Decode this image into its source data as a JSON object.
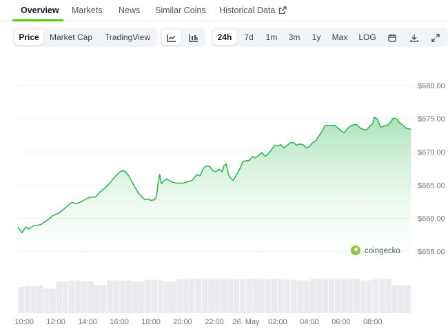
{
  "nav": {
    "tabs": [
      "Overview",
      "Markets",
      "News",
      "Similar Coins",
      "Historical Data"
    ],
    "active": "Overview"
  },
  "toolbar": {
    "view_tabs": [
      "Price",
      "Market Cap",
      "TradingView"
    ],
    "chart_type_icons": [
      "line-chart-icon",
      "candlestick-icon"
    ],
    "ranges": [
      "24h",
      "7d",
      "1m",
      "3m",
      "1y",
      "Max",
      "LOG"
    ],
    "active_view": "Price",
    "active_chart_type": "line-chart-icon",
    "active_range": "24h",
    "tool_icons": [
      "calendar-icon",
      "download-icon",
      "expand-icon"
    ]
  },
  "watermark": "coingecko",
  "colors": {
    "accent": "#4BCC00",
    "line": "#2fb84d",
    "fill": "#bfe8c9",
    "volume": "#e5e7eb"
  },
  "chart_data": {
    "type": "area",
    "title": "",
    "xlabel": "",
    "ylabel": "",
    "ylim": [
      653.5,
      682.5
    ],
    "yticks": [
      655,
      660,
      665,
      670,
      675,
      680
    ],
    "ytick_labels": [
      "$655.00",
      "$660.00",
      "$665.00",
      "$670.00",
      "$675.00",
      "$680.00"
    ],
    "xticks": [
      0,
      2,
      4,
      6,
      8,
      10,
      12,
      14,
      16,
      18,
      20,
      22
    ],
    "xtick_labels": [
      "10:00",
      "12:00",
      "14:00",
      "16:00",
      "18:00",
      "20:00",
      "22:00",
      "26. May",
      "02:00",
      "04:00",
      "06:00",
      "08:00"
    ],
    "xlim": [
      -0.4,
      24.4
    ],
    "grid": true,
    "series": [
      {
        "points": [
          [
            -0.4,
            658.7
          ],
          [
            -0.15,
            657.8
          ],
          [
            0.1,
            658.7
          ],
          [
            0.3,
            658.4
          ],
          [
            0.6,
            658.9
          ],
          [
            1.0,
            659.0
          ],
          [
            1.4,
            659.6
          ],
          [
            1.8,
            660.4
          ],
          [
            2.2,
            660.8
          ],
          [
            2.6,
            661.6
          ],
          [
            3.0,
            662.4
          ],
          [
            3.3,
            662.2
          ],
          [
            3.6,
            662.5
          ],
          [
            3.9,
            662.9
          ],
          [
            4.2,
            663.2
          ],
          [
            4.5,
            663.2
          ],
          [
            4.8,
            664.0
          ],
          [
            5.1,
            664.6
          ],
          [
            5.4,
            665.3
          ],
          [
            5.7,
            666.2
          ],
          [
            6.0,
            666.9
          ],
          [
            6.2,
            667.2
          ],
          [
            6.4,
            667.0
          ],
          [
            6.6,
            666.4
          ],
          [
            6.8,
            665.5
          ],
          [
            7.0,
            664.6
          ],
          [
            7.2,
            663.8
          ],
          [
            7.4,
            663.3
          ],
          [
            7.6,
            662.8
          ],
          [
            7.8,
            662.9
          ],
          [
            8.0,
            662.7
          ],
          [
            8.2,
            662.8
          ],
          [
            8.35,
            663.3
          ],
          [
            8.45,
            665.3
          ],
          [
            8.55,
            666.6
          ],
          [
            8.65,
            665.2
          ],
          [
            8.8,
            665.6
          ],
          [
            9.0,
            665.9
          ],
          [
            9.3,
            665.5
          ],
          [
            9.6,
            665.3
          ],
          [
            10.0,
            665.3
          ],
          [
            10.3,
            665.5
          ],
          [
            10.6,
            665.7
          ],
          [
            10.9,
            666.6
          ],
          [
            11.1,
            666.4
          ],
          [
            11.3,
            667.5
          ],
          [
            11.5,
            667.9
          ],
          [
            11.7,
            667.8
          ],
          [
            11.9,
            667.2
          ],
          [
            12.1,
            667.0
          ],
          [
            12.3,
            667.4
          ],
          [
            12.5,
            667.0
          ],
          [
            12.6,
            667.9
          ],
          [
            12.75,
            668.2
          ],
          [
            12.9,
            666.5
          ],
          [
            13.05,
            666.0
          ],
          [
            13.2,
            665.7
          ],
          [
            13.4,
            666.6
          ],
          [
            13.6,
            667.4
          ],
          [
            13.8,
            668.5
          ],
          [
            14.0,
            668.7
          ],
          [
            14.2,
            668.7
          ],
          [
            14.4,
            669.3
          ],
          [
            14.6,
            669.1
          ],
          [
            14.8,
            669.5
          ],
          [
            15.0,
            669.9
          ],
          [
            15.2,
            669.3
          ],
          [
            15.4,
            669.7
          ],
          [
            15.6,
            670.3
          ],
          [
            15.8,
            671.0
          ],
          [
            16.0,
            670.9
          ],
          [
            16.2,
            671.1
          ],
          [
            16.4,
            670.6
          ],
          [
            16.6,
            671.0
          ],
          [
            16.8,
            671.4
          ],
          [
            17.0,
            671.4
          ],
          [
            17.2,
            671.0
          ],
          [
            17.4,
            671.2
          ],
          [
            17.6,
            671.1
          ],
          [
            17.8,
            670.6
          ],
          [
            18.0,
            670.8
          ],
          [
            18.2,
            671.4
          ],
          [
            18.4,
            671.7
          ],
          [
            18.6,
            672.4
          ],
          [
            18.8,
            673.1
          ],
          [
            19.0,
            674.0
          ],
          [
            19.2,
            674.0
          ],
          [
            19.4,
            674.0
          ],
          [
            19.6,
            674.0
          ],
          [
            19.8,
            673.6
          ],
          [
            20.0,
            673.2
          ],
          [
            20.2,
            672.9
          ],
          [
            20.4,
            673.5
          ],
          [
            20.6,
            673.9
          ],
          [
            20.8,
            674.1
          ],
          [
            21.0,
            674.1
          ],
          [
            21.2,
            673.6
          ],
          [
            21.4,
            673.4
          ],
          [
            21.6,
            673.3
          ],
          [
            21.8,
            673.8
          ],
          [
            22.0,
            674.3
          ],
          [
            22.1,
            675.2
          ],
          [
            22.3,
            674.9
          ],
          [
            22.5,
            673.7
          ],
          [
            22.7,
            673.9
          ],
          [
            22.9,
            674.0
          ],
          [
            23.1,
            674.4
          ],
          [
            23.3,
            675.1
          ],
          [
            23.5,
            675.0
          ],
          [
            23.7,
            674.4
          ],
          [
            23.9,
            674.0
          ],
          [
            24.1,
            673.6
          ],
          [
            24.4,
            673.4
          ]
        ]
      }
    ],
    "volume": {
      "relative_heights": [
        0.75,
        0.78,
        0.78,
        0.78,
        0.7,
        0.7,
        0.9,
        0.9,
        0.93,
        0.93,
        0.9,
        0.9,
        0.8,
        0.8,
        0.93,
        0.93,
        0.93,
        0.93,
        0.9,
        0.9,
        0.95,
        0.95,
        0.93,
        0.9,
        0.9,
        0.97,
        0.97,
        0.97,
        0.97,
        0.97,
        0.97,
        0.97,
        0.97,
        0.97,
        0.97,
        0.97,
        0.97,
        0.97,
        0.97,
        0.97,
        0.97,
        0.97,
        0.95,
        0.95,
        0.93,
        0.93,
        0.97,
        0.97,
        0.97,
        0.97,
        0.97,
        0.97,
        0.97,
        0.97,
        0.93,
        0.93,
        0.97,
        0.97,
        0.97,
        0.8,
        0.8,
        0.78
      ]
    }
  }
}
